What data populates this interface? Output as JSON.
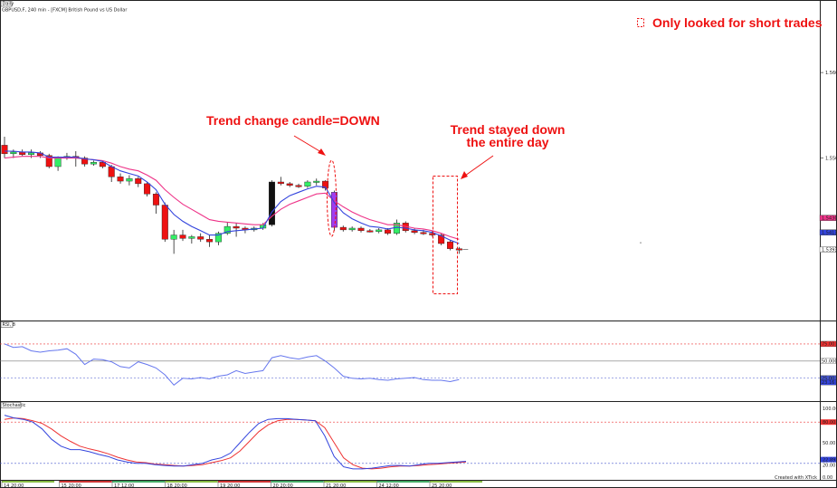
{
  "header": {
    "tab": "Daily",
    "symbol_line": "GBPUSD,F, 240 min - [FXCM] British Pound vs US Dollar"
  },
  "annotations": {
    "legend_box": "Only looked for short trades",
    "trend_change": "Trend change candle=DOWN",
    "trend_stayed_1": "Trend stayed down",
    "trend_stayed_2": "the entire day"
  },
  "panels": {
    "rsi_label": "RSI, 8",
    "stochastic_label": "Stochastic",
    "footer": "Created with XTick"
  },
  "colors": {
    "bull": "#33ee66",
    "bear": "#ee1111",
    "ema_fast": "#3344dd",
    "ema_slow": "#ee3388",
    "rsi_line": "#6677ee",
    "stoch_k": "#3344dd",
    "stoch_d": "#ee3333",
    "trend_change_candle": "#a03cf0",
    "breakout_candle": "#111111",
    "annotation": "#ee1111"
  },
  "chart_data": [
    {
      "type": "candlestick",
      "panel": "price",
      "ylim": [
        1.531,
        1.567
      ],
      "y_tick_labels": [
        "1.5600",
        "1.5500"
      ],
      "price_tags": [
        "1.5430",
        "1.5413",
        "1.5393"
      ],
      "x_tick_labels": [
        "14 20:00",
        "15 20:00",
        "17 12:00",
        "18 20:00",
        "19 20:00",
        "20 20:00",
        "21 20:00",
        "24 12:00",
        "25 20:00"
      ],
      "candles": [
        {
          "o": 1.5515,
          "h": 1.5525,
          "l": 1.55,
          "c": 1.5505
        },
        {
          "o": 1.5505,
          "h": 1.551,
          "l": 1.55,
          "c": 1.5507
        },
        {
          "o": 1.5507,
          "h": 1.551,
          "l": 1.5502,
          "c": 1.5504
        },
        {
          "o": 1.5504,
          "h": 1.551,
          "l": 1.55,
          "c": 1.5506
        },
        {
          "o": 1.5506,
          "h": 1.5508,
          "l": 1.55,
          "c": 1.5503
        },
        {
          "o": 1.5503,
          "h": 1.5505,
          "l": 1.5488,
          "c": 1.549
        },
        {
          "o": 1.549,
          "h": 1.5502,
          "l": 1.5485,
          "c": 1.55
        },
        {
          "o": 1.55,
          "h": 1.5506,
          "l": 1.5498,
          "c": 1.5502
        },
        {
          "o": 1.5502,
          "h": 1.5508,
          "l": 1.549,
          "c": 1.55
        },
        {
          "o": 1.55,
          "h": 1.5502,
          "l": 1.549,
          "c": 1.5493
        },
        {
          "o": 1.5493,
          "h": 1.5497,
          "l": 1.5491,
          "c": 1.5495
        },
        {
          "o": 1.5495,
          "h": 1.5497,
          "l": 1.5488,
          "c": 1.549
        },
        {
          "o": 1.549,
          "h": 1.5492,
          "l": 1.5472,
          "c": 1.5478
        },
        {
          "o": 1.5478,
          "h": 1.5482,
          "l": 1.547,
          "c": 1.5473
        },
        {
          "o": 1.5473,
          "h": 1.548,
          "l": 1.5468,
          "c": 1.5476
        },
        {
          "o": 1.5476,
          "h": 1.5478,
          "l": 1.5466,
          "c": 1.547
        },
        {
          "o": 1.547,
          "h": 1.5472,
          "l": 1.5455,
          "c": 1.5458
        },
        {
          "o": 1.5458,
          "h": 1.546,
          "l": 1.5435,
          "c": 1.5445
        },
        {
          "o": 1.5445,
          "h": 1.5448,
          "l": 1.5402,
          "c": 1.5405
        },
        {
          "o": 1.5405,
          "h": 1.5416,
          "l": 1.5388,
          "c": 1.541
        },
        {
          "o": 1.541,
          "h": 1.5416,
          "l": 1.5403,
          "c": 1.5406
        },
        {
          "o": 1.5406,
          "h": 1.541,
          "l": 1.54,
          "c": 1.5408
        },
        {
          "o": 1.5408,
          "h": 1.5412,
          "l": 1.5402,
          "c": 1.5405
        },
        {
          "o": 1.5405,
          "h": 1.541,
          "l": 1.5396,
          "c": 1.5402
        },
        {
          "o": 1.5402,
          "h": 1.5414,
          "l": 1.5398,
          "c": 1.5412
        },
        {
          "o": 1.5412,
          "h": 1.5425,
          "l": 1.541,
          "c": 1.542
        },
        {
          "o": 1.542,
          "h": 1.5424,
          "l": 1.5408,
          "c": 1.5418
        },
        {
          "o": 1.5418,
          "h": 1.542,
          "l": 1.5412,
          "c": 1.5416
        },
        {
          "o": 1.5416,
          "h": 1.542,
          "l": 1.5414,
          "c": 1.5418
        },
        {
          "o": 1.5418,
          "h": 1.5424,
          "l": 1.5416,
          "c": 1.5422
        },
        {
          "o": 1.5422,
          "h": 1.5474,
          "l": 1.542,
          "c": 1.5472
        },
        {
          "o": 1.5472,
          "h": 1.5478,
          "l": 1.5468,
          "c": 1.547
        },
        {
          "o": 1.547,
          "h": 1.5472,
          "l": 1.5466,
          "c": 1.5468
        },
        {
          "o": 1.5468,
          "h": 1.547,
          "l": 1.5465,
          "c": 1.5467
        },
        {
          "o": 1.5467,
          "h": 1.5474,
          "l": 1.5465,
          "c": 1.5472
        },
        {
          "o": 1.5472,
          "h": 1.5476,
          "l": 1.5468,
          "c": 1.5473
        },
        {
          "o": 1.5473,
          "h": 1.5474,
          "l": 1.5462,
          "c": 1.5465
        },
        {
          "o": 1.546,
          "h": 1.5462,
          "l": 1.5415,
          "c": 1.5419
        },
        {
          "o": 1.5419,
          "h": 1.5421,
          "l": 1.5414,
          "c": 1.5416
        },
        {
          "o": 1.5416,
          "h": 1.542,
          "l": 1.5414,
          "c": 1.5418
        },
        {
          "o": 1.5418,
          "h": 1.542,
          "l": 1.5413,
          "c": 1.5415
        },
        {
          "o": 1.5415,
          "h": 1.5417,
          "l": 1.5413,
          "c": 1.5414
        },
        {
          "o": 1.5414,
          "h": 1.5418,
          "l": 1.5412,
          "c": 1.5416
        },
        {
          "o": 1.5416,
          "h": 1.5418,
          "l": 1.541,
          "c": 1.5412
        },
        {
          "o": 1.5412,
          "h": 1.5428,
          "l": 1.541,
          "c": 1.5424
        },
        {
          "o": 1.5424,
          "h": 1.5426,
          "l": 1.5413,
          "c": 1.5415
        },
        {
          "o": 1.5415,
          "h": 1.5418,
          "l": 1.5411,
          "c": 1.5413
        },
        {
          "o": 1.5413,
          "h": 1.5416,
          "l": 1.541,
          "c": 1.5412
        },
        {
          "o": 1.5412,
          "h": 1.5415,
          "l": 1.5408,
          "c": 1.541
        },
        {
          "o": 1.541,
          "h": 1.5412,
          "l": 1.5398,
          "c": 1.54
        },
        {
          "o": 1.5402,
          "h": 1.5404,
          "l": 1.5392,
          "c": 1.5394
        },
        {
          "o": 1.5394,
          "h": 1.5396,
          "l": 1.5388,
          "c": 1.5393
        }
      ],
      "ema_fast": [
        1.5508,
        1.5508,
        1.5507,
        1.5507,
        1.5506,
        1.5501,
        1.5501,
        1.5501,
        1.5501,
        1.5499,
        1.5498,
        1.5496,
        1.549,
        1.5485,
        1.5482,
        1.5479,
        1.5472,
        1.5463,
        1.5446,
        1.5434,
        1.5426,
        1.542,
        1.5415,
        1.541,
        1.541,
        1.5414,
        1.5415,
        1.5416,
        1.5417,
        1.5418,
        1.5437,
        1.5449,
        1.5456,
        1.546,
        1.5464,
        1.5467,
        1.5466,
        1.5448,
        1.5436,
        1.5429,
        1.5424,
        1.542,
        1.5419,
        1.5417,
        1.5419,
        1.5418,
        1.5416,
        1.5415,
        1.5413,
        1.5409,
        1.5404,
        1.54
      ],
      "ema_slow": [
        1.55,
        1.5501,
        1.5502,
        1.5502,
        1.5502,
        1.55,
        1.55,
        1.55,
        1.55,
        1.5499,
        1.5498,
        1.5497,
        1.5494,
        1.549,
        1.5487,
        1.5485,
        1.548,
        1.5474,
        1.5463,
        1.5454,
        1.5446,
        1.544,
        1.5434,
        1.5428,
        1.5426,
        1.5425,
        1.5424,
        1.5423,
        1.5422,
        1.5422,
        1.5432,
        1.544,
        1.5446,
        1.545,
        1.5454,
        1.5458,
        1.5459,
        1.545,
        1.5443,
        1.5437,
        1.5432,
        1.5428,
        1.5425,
        1.5422,
        1.5422,
        1.542,
        1.5418,
        1.5417,
        1.5415,
        1.5412,
        1.5408,
        1.5405
      ]
    },
    {
      "type": "line",
      "panel": "rsi",
      "title": "RSI, 8",
      "ylim": [
        0,
        100
      ],
      "levels": [
        75,
        50,
        25
      ],
      "y_tick_labels": [
        "75.00",
        "50.0000",
        "25.00",
        "23.16"
      ],
      "series": [
        {
          "values": [
            75,
            70,
            71,
            65,
            63,
            65,
            66,
            68,
            60,
            45,
            53,
            52,
            49,
            42,
            40,
            49,
            45,
            40,
            30,
            15,
            25,
            24,
            26,
            24,
            28,
            30,
            36,
            32,
            34,
            36,
            55,
            58,
            55,
            53,
            56,
            58,
            50,
            40,
            28,
            25,
            24,
            25,
            23,
            22,
            24,
            25,
            26,
            23,
            22,
            22,
            20,
            23
          ]
        }
      ]
    },
    {
      "type": "line",
      "panel": "stochastic",
      "title": "Stochastic",
      "ylim": [
        0,
        100
      ],
      "levels": [
        80,
        20
      ],
      "y_tick_labels": [
        "100.00",
        "80.00",
        "50.00",
        "22.89",
        "20.00",
        "0.00"
      ],
      "series": [
        {
          "values": [
            90,
            86,
            84,
            80,
            70,
            55,
            45,
            40,
            40,
            37,
            33,
            30,
            25,
            22,
            20,
            20,
            18,
            17,
            16,
            16,
            18,
            20,
            25,
            28,
            35,
            50,
            65,
            78,
            84,
            85,
            85,
            84,
            83,
            82,
            60,
            30,
            15,
            12,
            12,
            13,
            15,
            17,
            17,
            16,
            18,
            20,
            20,
            21,
            22,
            23
          ]
        },
        {
          "values": [
            84,
            86,
            85,
            82,
            78,
            70,
            60,
            52,
            45,
            41,
            38,
            34,
            29,
            25,
            22,
            21,
            19,
            18,
            17,
            16,
            17,
            18,
            21,
            24,
            28,
            38,
            52,
            66,
            76,
            82,
            84,
            84,
            83,
            82,
            72,
            50,
            28,
            18,
            13,
            12,
            13,
            15,
            16,
            16,
            17,
            18,
            19,
            20,
            21,
            22
          ]
        }
      ]
    }
  ]
}
